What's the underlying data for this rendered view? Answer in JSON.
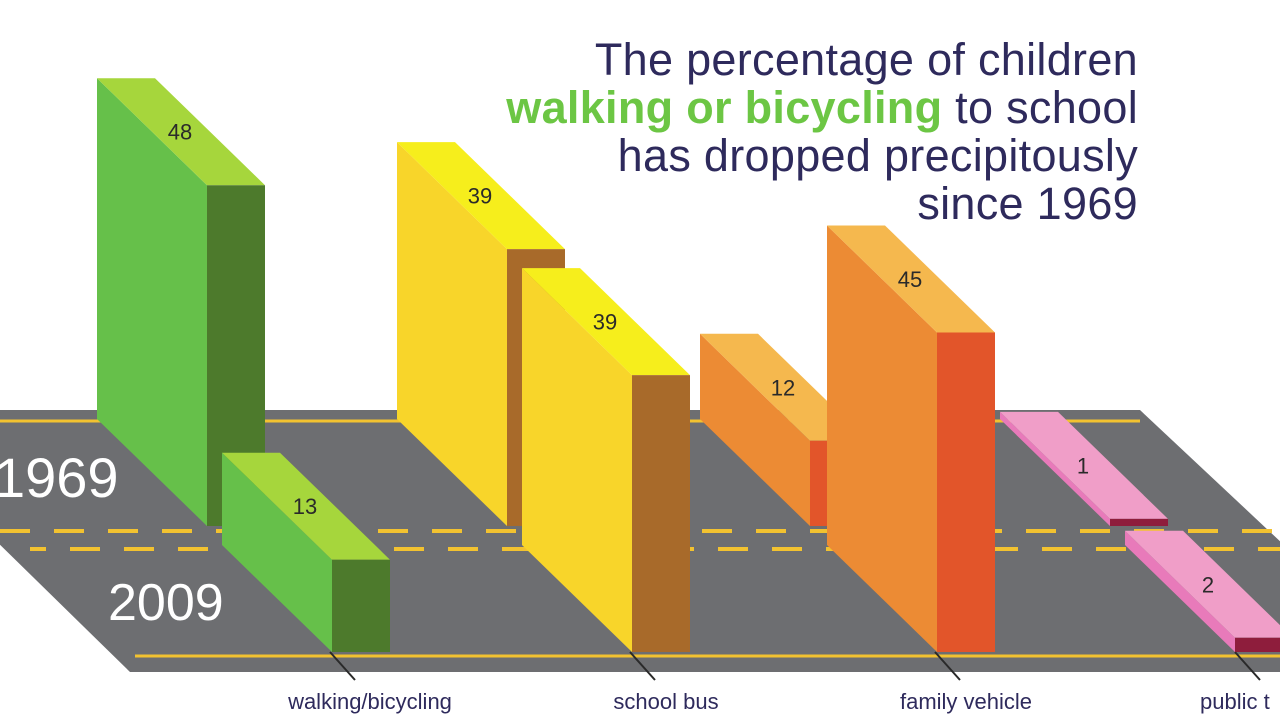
{
  "title": {
    "line1": "The percentage of children",
    "line2_highlight": "walking or bicycling",
    "line2_rest": " to school",
    "line3": "has dropped precipitously",
    "line4": "since 1969"
  },
  "colors": {
    "title_text": "#2e2a5c",
    "highlight": "#6cc644",
    "road": "#6d6e71",
    "road_line": "#f2c230"
  },
  "chart_data": {
    "type": "bar",
    "categories": [
      "walking/bicycling",
      "school bus",
      "family vehicle",
      "public t"
    ],
    "series": [
      {
        "name": "1969",
        "values": [
          48,
          39,
          12,
          1
        ]
      },
      {
        "name": "2009",
        "values": [
          13,
          39,
          45,
          2
        ]
      }
    ],
    "ylim": [
      0,
      50
    ],
    "grid": false,
    "legend": "none"
  }
}
